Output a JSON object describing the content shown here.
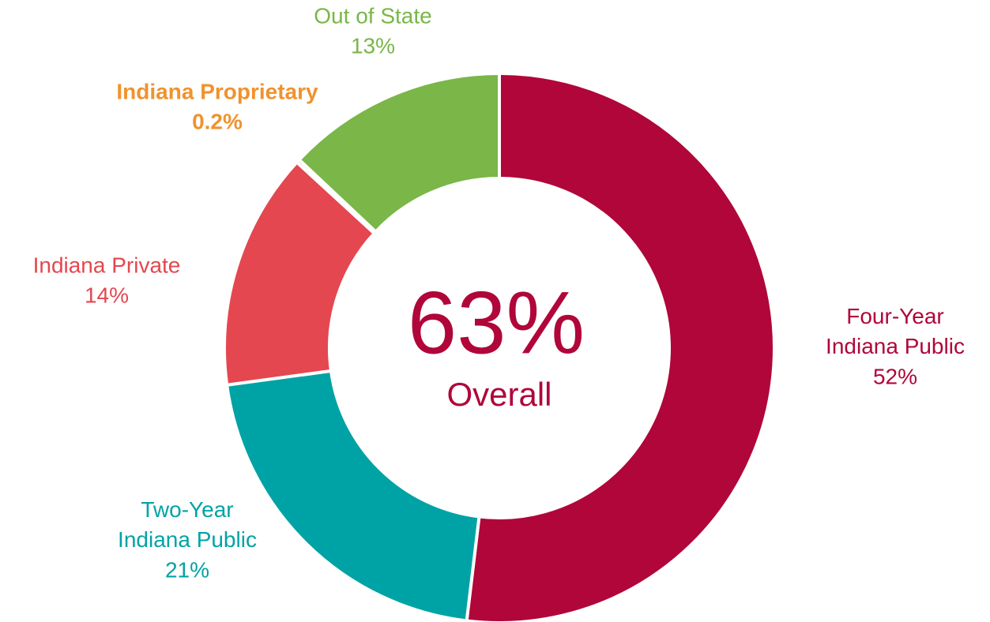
{
  "chart_data": {
    "type": "donut",
    "categories": [
      "Four-Year Indiana Public",
      "Two-Year Indiana Public",
      "Indiana Private",
      "Indiana Proprietary",
      "Out of State"
    ],
    "values": [
      52,
      21,
      14,
      0.2,
      13
    ],
    "value_labels": [
      "52%",
      "21%",
      "14%",
      "0.2%",
      "13%"
    ],
    "colors": [
      "#b0063a",
      "#00a3a5",
      "#e4474f",
      "#f0922e",
      "#7ab648"
    ],
    "center_label": "63%",
    "center_sublabel": "Overall"
  }
}
